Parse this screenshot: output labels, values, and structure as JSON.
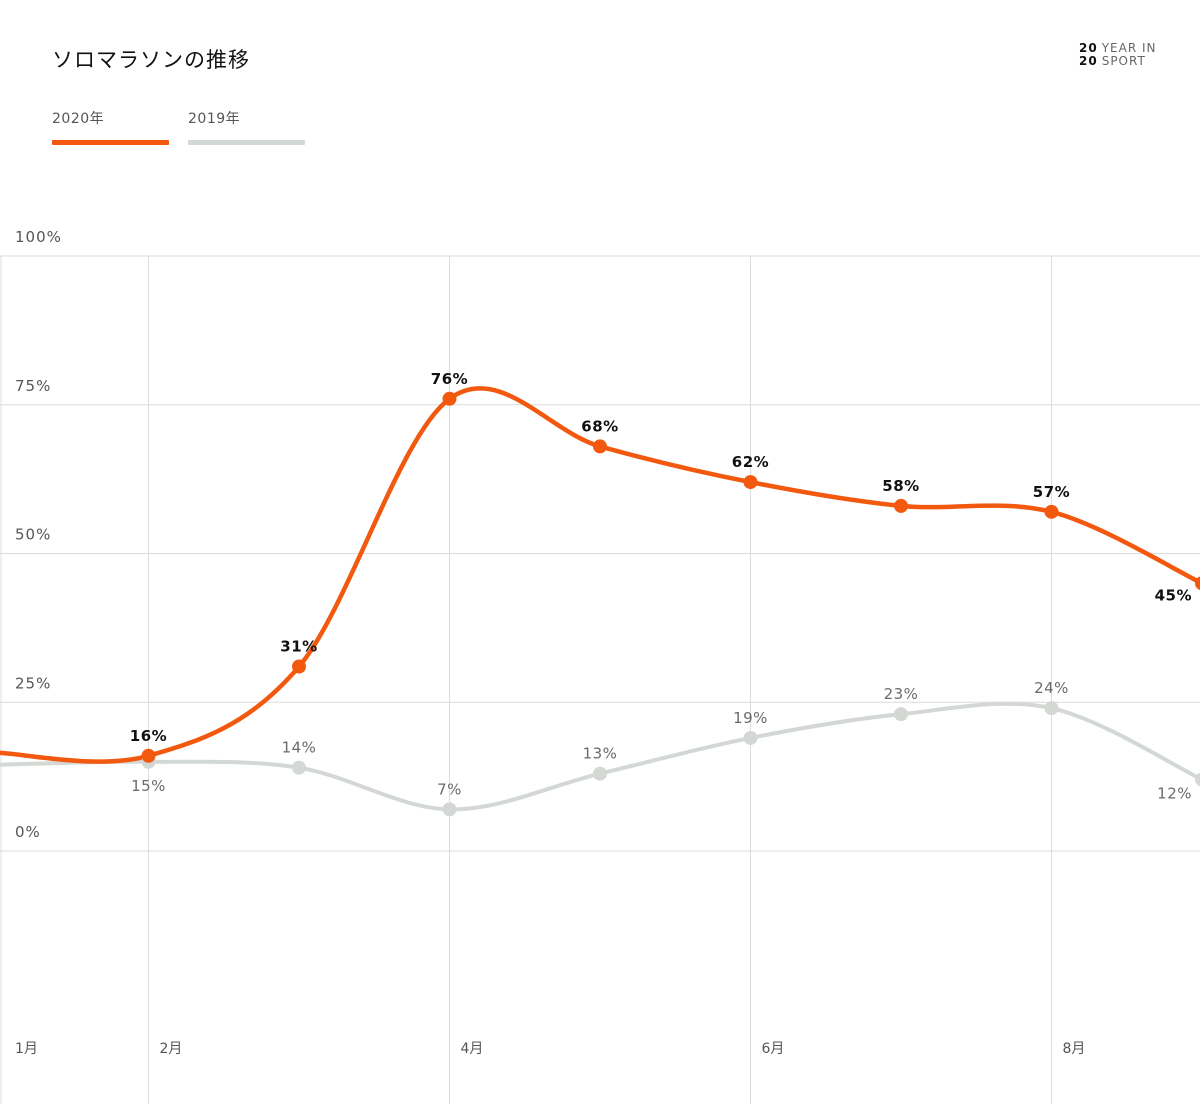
{
  "page": {
    "title": "ソロマラソンの推移",
    "brand": {
      "num1": "20",
      "word1": "YEAR IN",
      "num2": "20",
      "word2": "SPORT"
    }
  },
  "colors": {
    "series_2020": "#f2590f",
    "series_2019": "#d4d8d5",
    "grid": "#dcdcdc",
    "axis_text": "#555555",
    "label_2020": "#111111",
    "label_2019": "#6b6b6b"
  },
  "legend": [
    {
      "label": "2020年",
      "color": "#f2590f"
    },
    {
      "label": "2019年",
      "color": "#d4d8d5"
    }
  ],
  "chart_data": {
    "type": "line",
    "title": "ソロマラソンの推移",
    "x": [
      1,
      2,
      3,
      4,
      5,
      6,
      7,
      8,
      9
    ],
    "xlim": [
      1,
      9
    ],
    "x_ticks": [
      {
        "x": 1,
        "label": "1月"
      },
      {
        "x": 2,
        "label": "2月"
      },
      {
        "x": 4,
        "label": "4月"
      },
      {
        "x": 6,
        "label": "6月"
      },
      {
        "x": 8,
        "label": "8月"
      }
    ],
    "y_ticks": [
      {
        "y": 100,
        "label": "100%"
      },
      {
        "y": 75,
        "label": "75%"
      },
      {
        "y": 50,
        "label": "50%"
      },
      {
        "y": 25,
        "label": "25%"
      },
      {
        "y": 0,
        "label": "0%"
      }
    ],
    "ylim": [
      0,
      100
    ],
    "grid": true,
    "legend_position": "top-left",
    "series": [
      {
        "name": "2020年",
        "values": [
          16,
          31,
          76,
          68,
          62,
          58,
          57,
          45
        ],
        "x": [
          2,
          3,
          4,
          5,
          6,
          7,
          8,
          9
        ],
        "labels": [
          "16%",
          "31%",
          "76%",
          "68%",
          "62%",
          "58%",
          "57%",
          "45%"
        ],
        "lead_value": 16.5
      },
      {
        "name": "2019年",
        "values": [
          15,
          14,
          7,
          13,
          19,
          23,
          24,
          12
        ],
        "x": [
          2,
          3,
          4,
          5,
          6,
          7,
          8,
          9
        ],
        "labels": [
          "15%",
          "14%",
          "7%",
          "13%",
          "19%",
          "23%",
          "24%",
          "12%"
        ],
        "lead_value": 14.5
      }
    ]
  }
}
